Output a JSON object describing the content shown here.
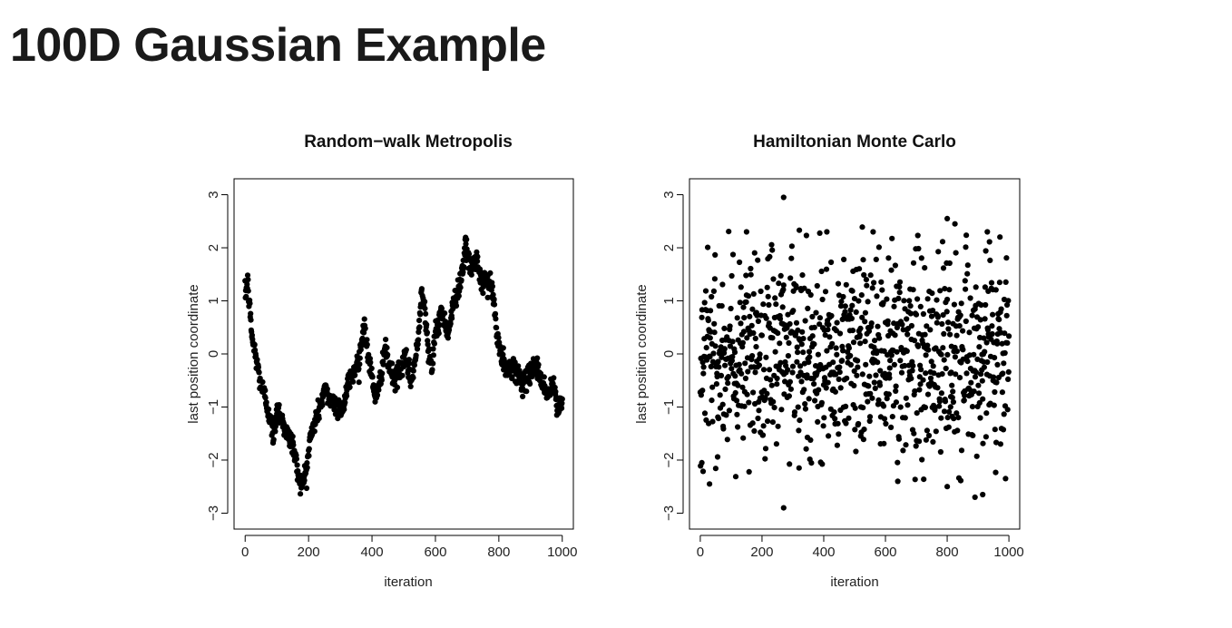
{
  "page": {
    "title": "100D Gaussian Example"
  },
  "chart_data": [
    {
      "type": "scatter",
      "title": "Random−walk Metropolis",
      "xlabel": "iteration",
      "ylabel": "last position coordinate",
      "xlim": [
        -35,
        1035
      ],
      "ylim": [
        -3.3,
        3.3
      ],
      "xticks": [
        0,
        200,
        400,
        600,
        800,
        1000
      ],
      "xtick_labels": [
        "0",
        "200",
        "400",
        "600",
        "800",
        "1000"
      ],
      "yticks": [
        -3,
        -2,
        -1,
        0,
        1,
        2,
        3
      ],
      "ytick_labels": [
        "−3",
        "−2",
        "−1",
        "0",
        "1",
        "2",
        "3"
      ],
      "grid": false,
      "series": [
        {
          "color": "#000000",
          "trajectory_anchors": [
            [
              0,
              1.1
            ],
            [
              8,
              1.35
            ],
            [
              15,
              0.8
            ],
            [
              22,
              0.3
            ],
            [
              35,
              -0.1
            ],
            [
              50,
              -0.6
            ],
            [
              60,
              -0.75
            ],
            [
              75,
              -1.1
            ],
            [
              90,
              -1.6
            ],
            [
              100,
              -1.0
            ],
            [
              115,
              -1.2
            ],
            [
              130,
              -1.5
            ],
            [
              150,
              -1.7
            ],
            [
              165,
              -2.2
            ],
            [
              180,
              -2.5
            ],
            [
              195,
              -2.1
            ],
            [
              205,
              -1.6
            ],
            [
              220,
              -1.3
            ],
            [
              235,
              -1.0
            ],
            [
              250,
              -0.7
            ],
            [
              270,
              -0.85
            ],
            [
              290,
              -1.0
            ],
            [
              310,
              -1.0
            ],
            [
              325,
              -0.55
            ],
            [
              345,
              -0.3
            ],
            [
              360,
              -0.1
            ],
            [
              375,
              0.6
            ],
            [
              385,
              0.05
            ],
            [
              400,
              -0.45
            ],
            [
              415,
              -0.9
            ],
            [
              430,
              -0.3
            ],
            [
              440,
              0.1
            ],
            [
              455,
              -0.25
            ],
            [
              470,
              -0.55
            ],
            [
              485,
              -0.3
            ],
            [
              505,
              -0.1
            ],
            [
              525,
              -0.5
            ],
            [
              545,
              0.2
            ],
            [
              555,
              1.15
            ],
            [
              565,
              1.05
            ],
            [
              575,
              0.2
            ],
            [
              590,
              -0.3
            ],
            [
              600,
              0.4
            ],
            [
              620,
              0.8
            ],
            [
              640,
              0.4
            ],
            [
              660,
              1.0
            ],
            [
              680,
              1.4
            ],
            [
              695,
              2.0
            ],
            [
              710,
              1.6
            ],
            [
              730,
              1.8
            ],
            [
              745,
              1.3
            ],
            [
              760,
              1.4
            ],
            [
              780,
              1.2
            ],
            [
              795,
              0.3
            ],
            [
              810,
              -0.1
            ],
            [
              825,
              -0.35
            ],
            [
              845,
              -0.2
            ],
            [
              860,
              -0.4
            ],
            [
              880,
              -0.6
            ],
            [
              900,
              -0.3
            ],
            [
              915,
              -0.2
            ],
            [
              935,
              -0.5
            ],
            [
              955,
              -0.8
            ],
            [
              970,
              -0.55
            ],
            [
              985,
              -1.05
            ],
            [
              1000,
              -0.85
            ]
          ]
        }
      ]
    },
    {
      "type": "scatter",
      "title": "Hamiltonian Monte Carlo",
      "xlabel": "iteration",
      "ylabel": "last position coordinate",
      "xlim": [
        -35,
        1035
      ],
      "ylim": [
        -3.3,
        3.3
      ],
      "xticks": [
        0,
        200,
        400,
        600,
        800,
        1000
      ],
      "xtick_labels": [
        "0",
        "200",
        "400",
        "600",
        "800",
        "1000"
      ],
      "yticks": [
        -3,
        -2,
        -1,
        0,
        1,
        2,
        3
      ],
      "ytick_labels": [
        "−3",
        "−2",
        "−1",
        "0",
        "1",
        "2",
        "3"
      ],
      "grid": false,
      "series": [
        {
          "color": "#000000",
          "distribution": "independent standard normal draws, one per iteration 0-1000",
          "notable_points": [
            [
              270,
              2.95
            ],
            [
              270,
              -2.9
            ],
            [
              30,
              -2.45
            ],
            [
              800,
              2.55
            ],
            [
              825,
              2.45
            ],
            [
              930,
              2.3
            ],
            [
              150,
              2.3
            ],
            [
              410,
              2.3
            ],
            [
              560,
              2.3
            ],
            [
              890,
              -2.7
            ],
            [
              915,
              -2.65
            ],
            [
              800,
              -2.5
            ],
            [
              640,
              -2.4
            ],
            [
              5,
              -2.05
            ],
            [
              320,
              -2.15
            ]
          ]
        }
      ]
    }
  ]
}
